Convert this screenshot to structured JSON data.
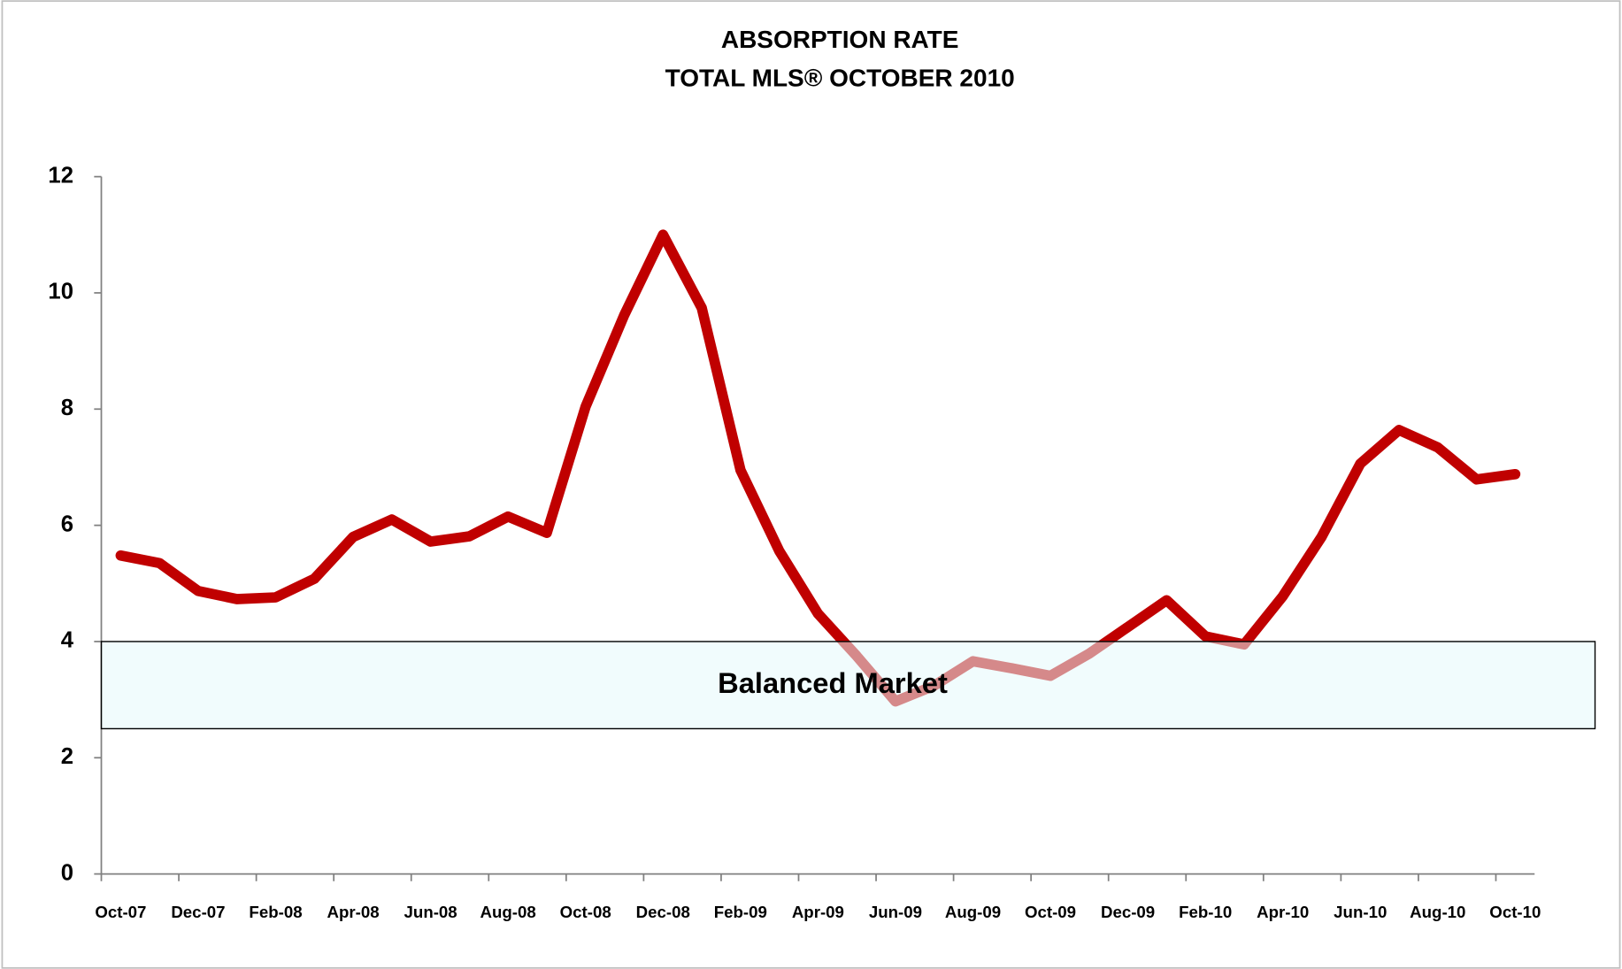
{
  "chart_data": {
    "type": "line",
    "title": "ABSORPTION RATE",
    "subtitle": "TOTAL MLS® OCTOBER 2010",
    "categories": [
      "Oct-07",
      null,
      "Dec-07",
      null,
      "Feb-08",
      null,
      "Apr-08",
      null,
      "Jun-08",
      null,
      "Aug-08",
      null,
      "Oct-08",
      null,
      "Dec-08",
      null,
      "Feb-09",
      null,
      "Apr-09",
      null,
      "Jun-09",
      null,
      "Aug-09",
      null,
      "Oct-09",
      null,
      "Dec-09",
      null,
      "Feb-10",
      null,
      "Apr-10",
      null,
      "Jun-10",
      null,
      "Aug-10",
      null,
      "Oct-10"
    ],
    "series": [
      {
        "color": "#c00000",
        "values": [
          5.48,
          5.35,
          4.87,
          4.73,
          4.76,
          5.08,
          5.8,
          6.1,
          5.72,
          5.81,
          6.15,
          5.87,
          8.04,
          9.62,
          11.0,
          9.74,
          6.95,
          5.56,
          4.48,
          3.75,
          2.97,
          3.24,
          3.66,
          3.54,
          3.41,
          3.79,
          4.25,
          4.71,
          4.09,
          3.95,
          4.78,
          5.8,
          7.06,
          7.64,
          7.34,
          6.79,
          6.88
        ]
      }
    ],
    "ylim": [
      0,
      12
    ],
    "yticks": [
      0,
      2,
      4,
      6,
      8,
      10,
      12
    ],
    "band": {
      "label": "Balanced Market",
      "range": [
        2.5,
        4
      ]
    },
    "grid": false
  }
}
